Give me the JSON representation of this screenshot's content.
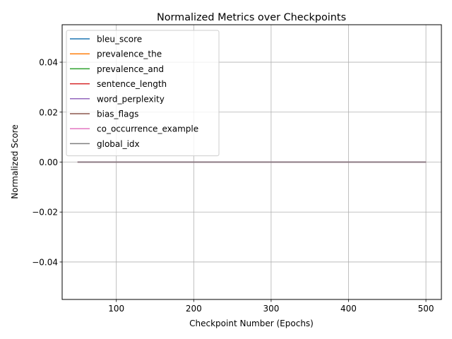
{
  "chart_data": {
    "type": "line",
    "title": "Normalized Metrics over Checkpoints",
    "xlabel": "Checkpoint Number (Epochs)",
    "ylabel": "Normalized Score",
    "xlim": [
      30,
      520
    ],
    "ylim": [
      -0.055,
      0.055
    ],
    "xticks": [
      100,
      200,
      300,
      400,
      500
    ],
    "yticks": [
      -0.04,
      -0.02,
      0.0,
      0.02,
      0.04
    ],
    "ytick_labels": [
      "−0.04",
      "−0.02",
      "0.00",
      "0.02",
      "0.04"
    ],
    "grid": true,
    "legend_position": "upper-left",
    "x": [
      50,
      100,
      150,
      200,
      250,
      300,
      350,
      400,
      450,
      500
    ],
    "series": [
      {
        "name": "bleu_score",
        "color": "#1f77b4",
        "values": [
          0,
          0,
          0,
          0,
          0,
          0,
          0,
          0,
          0,
          0
        ]
      },
      {
        "name": "prevalence_the",
        "color": "#ff7f0e",
        "values": [
          0,
          0,
          0,
          0,
          0,
          0,
          0,
          0,
          0,
          0
        ]
      },
      {
        "name": "prevalence_and",
        "color": "#2ca02c",
        "values": [
          0,
          0,
          0,
          0,
          0,
          0,
          0,
          0,
          0,
          0
        ]
      },
      {
        "name": "sentence_length",
        "color": "#d62728",
        "values": [
          0,
          0,
          0,
          0,
          0,
          0,
          0,
          0,
          0,
          0
        ]
      },
      {
        "name": "word_perplexity",
        "color": "#9467bd",
        "values": [
          0,
          0,
          0,
          0,
          0,
          0,
          0,
          0,
          0,
          0
        ]
      },
      {
        "name": "bias_flags",
        "color": "#8c564b",
        "values": [
          0,
          0,
          0,
          0,
          0,
          0,
          0,
          0,
          0,
          0
        ]
      },
      {
        "name": "co_occurrence_example",
        "color": "#e377c2",
        "values": [
          0,
          0,
          0,
          0,
          0,
          0,
          0,
          0,
          0,
          0
        ]
      },
      {
        "name": "global_idx",
        "color": "#7f7f7f",
        "values": [
          0,
          0,
          0,
          0,
          0,
          0,
          0,
          0,
          0,
          0
        ]
      }
    ]
  }
}
